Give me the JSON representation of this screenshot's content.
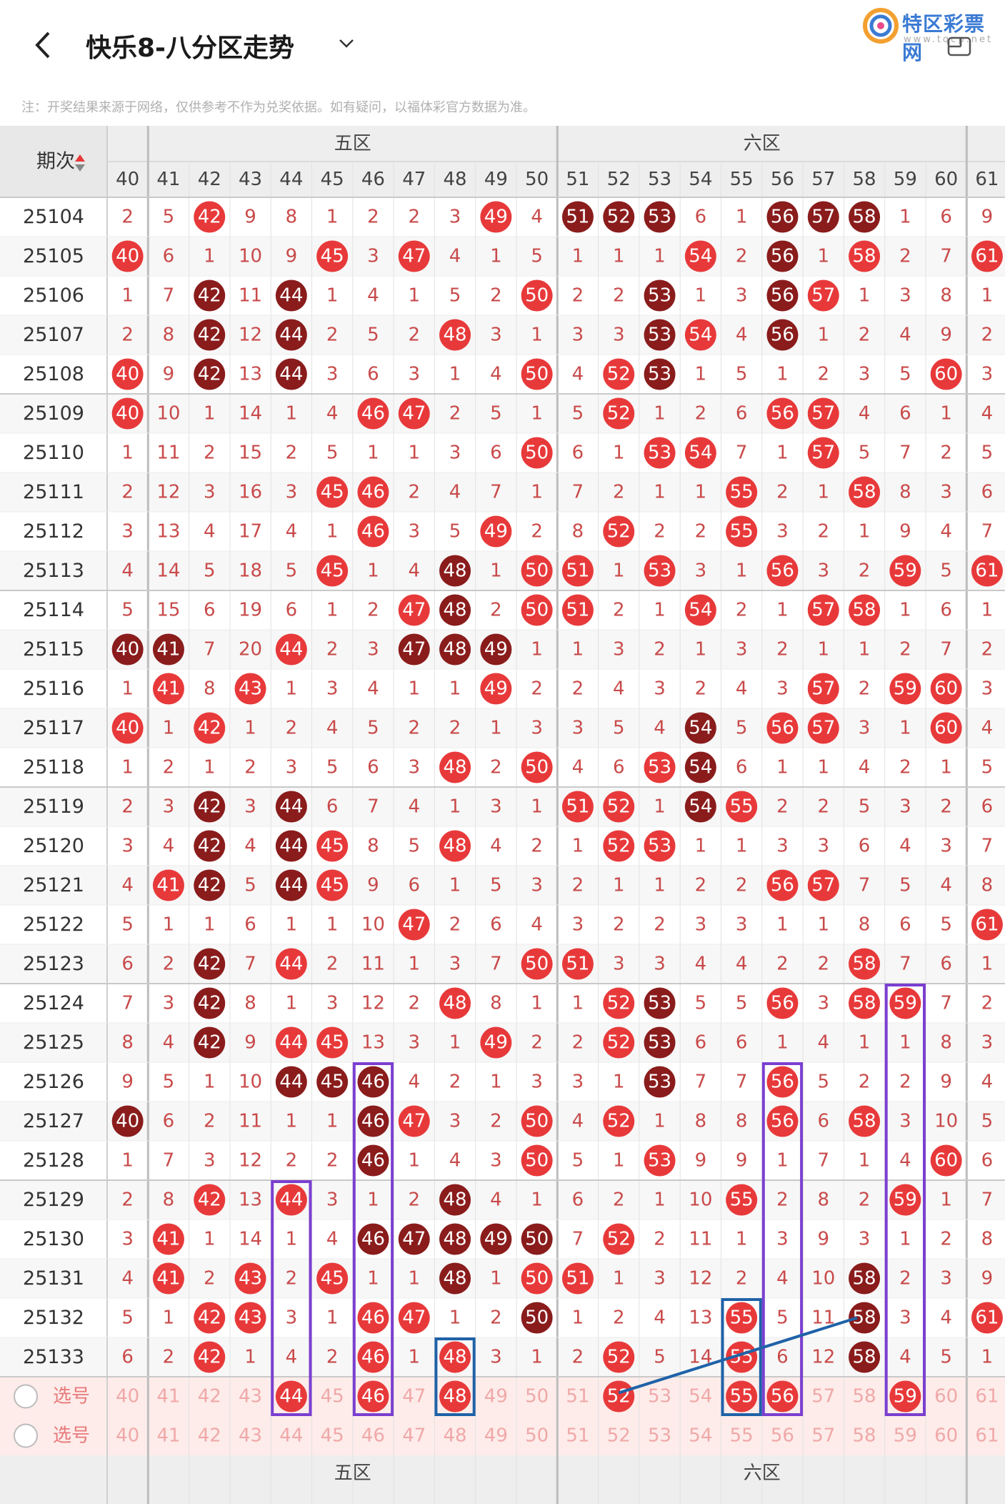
{
  "header": {
    "title": "快乐8-八分区走势",
    "logo_text": "特区彩票网",
    "logo_sub": "www.tqcp.net"
  },
  "notice": "注：开奖结果来源于网络，仅供参考不作为兑奖依据。如有疑问，以福体彩官方数据为准。",
  "table": {
    "period_header": "期次",
    "zone5_label": "五区",
    "zone6_label": "六区",
    "columns": [
      40,
      41,
      42,
      43,
      44,
      45,
      46,
      47,
      48,
      49,
      50,
      51,
      52,
      53,
      54,
      55,
      56,
      57,
      58,
      59,
      60,
      61
    ],
    "select_label": "选号",
    "rows": [
      {
        "p": "25104",
        "v": [
          2,
          5,
          42,
          9,
          8,
          1,
          2,
          2,
          3,
          49,
          4,
          51,
          52,
          53,
          6,
          1,
          56,
          57,
          58,
          1,
          6,
          9
        ]
      },
      {
        "p": "25105",
        "v": [
          40,
          6,
          1,
          10,
          9,
          45,
          3,
          47,
          4,
          1,
          5,
          1,
          1,
          1,
          54,
          2,
          56,
          1,
          58,
          2,
          7,
          61
        ]
      },
      {
        "p": "25106",
        "v": [
          1,
          7,
          42,
          11,
          44,
          1,
          4,
          1,
          5,
          2,
          50,
          2,
          2,
          53,
          1,
          3,
          56,
          57,
          1,
          3,
          8,
          1
        ]
      },
      {
        "p": "25107",
        "v": [
          2,
          8,
          42,
          12,
          44,
          2,
          5,
          2,
          48,
          3,
          1,
          3,
          3,
          53,
          54,
          4,
          56,
          1,
          2,
          4,
          9,
          2
        ]
      },
      {
        "p": "25108",
        "v": [
          40,
          9,
          42,
          13,
          44,
          3,
          6,
          3,
          1,
          4,
          50,
          4,
          52,
          53,
          1,
          5,
          1,
          2,
          3,
          5,
          60,
          3
        ]
      },
      {
        "p": "25109",
        "v": [
          40,
          10,
          1,
          14,
          1,
          4,
          46,
          47,
          2,
          5,
          1,
          5,
          52,
          1,
          2,
          6,
          56,
          57,
          4,
          6,
          1,
          4
        ]
      },
      {
        "p": "25110",
        "v": [
          1,
          11,
          2,
          15,
          2,
          5,
          1,
          1,
          3,
          6,
          50,
          6,
          1,
          53,
          54,
          7,
          1,
          57,
          5,
          7,
          2,
          5
        ]
      },
      {
        "p": "25111",
        "v": [
          2,
          12,
          3,
          16,
          3,
          45,
          46,
          2,
          4,
          7,
          1,
          7,
          2,
          1,
          1,
          55,
          2,
          1,
          58,
          8,
          3,
          6
        ]
      },
      {
        "p": "25112",
        "v": [
          3,
          13,
          4,
          17,
          4,
          1,
          46,
          3,
          5,
          49,
          2,
          8,
          52,
          2,
          2,
          55,
          3,
          2,
          1,
          9,
          4,
          7
        ]
      },
      {
        "p": "25113",
        "v": [
          4,
          14,
          5,
          18,
          5,
          45,
          1,
          4,
          48,
          1,
          50,
          51,
          1,
          53,
          3,
          1,
          56,
          3,
          2,
          59,
          5,
          61
        ]
      },
      {
        "p": "25114",
        "v": [
          5,
          15,
          6,
          19,
          6,
          1,
          2,
          47,
          48,
          2,
          50,
          51,
          2,
          1,
          54,
          2,
          1,
          57,
          58,
          1,
          6,
          1
        ]
      },
      {
        "p": "25115",
        "v": [
          40,
          41,
          7,
          20,
          44,
          2,
          3,
          47,
          48,
          49,
          1,
          1,
          3,
          2,
          1,
          3,
          2,
          1,
          1,
          2,
          7,
          2
        ]
      },
      {
        "p": "25116",
        "v": [
          1,
          41,
          8,
          43,
          1,
          3,
          4,
          1,
          1,
          49,
          2,
          2,
          4,
          3,
          2,
          4,
          3,
          57,
          2,
          59,
          60,
          3
        ]
      },
      {
        "p": "25117",
        "v": [
          40,
          1,
          42,
          1,
          2,
          4,
          5,
          2,
          2,
          1,
          3,
          3,
          5,
          4,
          54,
          5,
          56,
          57,
          3,
          1,
          60,
          4
        ]
      },
      {
        "p": "25118",
        "v": [
          1,
          2,
          1,
          2,
          3,
          5,
          6,
          3,
          48,
          2,
          50,
          4,
          6,
          53,
          54,
          6,
          1,
          1,
          4,
          2,
          1,
          5
        ]
      },
      {
        "p": "25119",
        "v": [
          2,
          3,
          42,
          3,
          44,
          6,
          7,
          4,
          1,
          3,
          1,
          51,
          52,
          1,
          54,
          55,
          2,
          2,
          5,
          3,
          2,
          6
        ]
      },
      {
        "p": "25120",
        "v": [
          3,
          4,
          42,
          4,
          44,
          45,
          8,
          5,
          48,
          4,
          2,
          1,
          52,
          53,
          1,
          1,
          3,
          3,
          6,
          4,
          3,
          7
        ]
      },
      {
        "p": "25121",
        "v": [
          4,
          41,
          42,
          5,
          44,
          45,
          9,
          6,
          1,
          5,
          3,
          2,
          1,
          1,
          2,
          2,
          56,
          57,
          7,
          5,
          4,
          8
        ]
      },
      {
        "p": "25122",
        "v": [
          5,
          1,
          1,
          6,
          1,
          1,
          10,
          47,
          2,
          6,
          4,
          3,
          2,
          2,
          3,
          3,
          1,
          1,
          8,
          6,
          5,
          61
        ]
      },
      {
        "p": "25123",
        "v": [
          6,
          2,
          42,
          7,
          44,
          2,
          11,
          1,
          3,
          7,
          50,
          51,
          3,
          3,
          4,
          4,
          2,
          2,
          58,
          7,
          6,
          1
        ]
      },
      {
        "p": "25124",
        "v": [
          7,
          3,
          42,
          8,
          1,
          3,
          12,
          2,
          48,
          8,
          1,
          1,
          52,
          53,
          5,
          5,
          56,
          3,
          58,
          59,
          7,
          2
        ]
      },
      {
        "p": "25125",
        "v": [
          8,
          4,
          42,
          9,
          44,
          45,
          13,
          3,
          1,
          49,
          2,
          2,
          52,
          53,
          6,
          6,
          1,
          4,
          1,
          1,
          8,
          3
        ]
      },
      {
        "p": "25126",
        "v": [
          9,
          5,
          1,
          10,
          44,
          45,
          46,
          4,
          2,
          1,
          3,
          3,
          1,
          53,
          7,
          7,
          56,
          5,
          2,
          2,
          9,
          4
        ]
      },
      {
        "p": "25127",
        "v": [
          40,
          6,
          2,
          11,
          1,
          1,
          46,
          47,
          3,
          2,
          50,
          4,
          52,
          1,
          8,
          8,
          56,
          6,
          58,
          3,
          10,
          5
        ]
      },
      {
        "p": "25128",
        "v": [
          1,
          7,
          3,
          12,
          2,
          2,
          46,
          1,
          4,
          3,
          50,
          5,
          1,
          53,
          9,
          9,
          1,
          7,
          1,
          4,
          60,
          6
        ]
      },
      {
        "p": "25129",
        "v": [
          2,
          8,
          42,
          13,
          44,
          3,
          1,
          2,
          48,
          4,
          1,
          6,
          2,
          1,
          10,
          55,
          2,
          8,
          2,
          59,
          1,
          7
        ]
      },
      {
        "p": "25130",
        "v": [
          3,
          41,
          1,
          14,
          1,
          4,
          46,
          47,
          48,
          49,
          50,
          7,
          52,
          2,
          11,
          1,
          3,
          9,
          3,
          1,
          2,
          8
        ]
      },
      {
        "p": "25131",
        "v": [
          4,
          41,
          2,
          43,
          2,
          45,
          1,
          1,
          48,
          1,
          50,
          51,
          1,
          3,
          12,
          2,
          4,
          10,
          58,
          2,
          3,
          9
        ]
      },
      {
        "p": "25132",
        "v": [
          5,
          1,
          42,
          43,
          3,
          1,
          46,
          47,
          1,
          2,
          50,
          1,
          2,
          4,
          13,
          55,
          5,
          11,
          58,
          3,
          4,
          61
        ]
      },
      {
        "p": "25133",
        "v": [
          6,
          2,
          42,
          1,
          4,
          2,
          46,
          1,
          48,
          3,
          1,
          2,
          52,
          5,
          14,
          55,
          6,
          12,
          58,
          4,
          5,
          1
        ]
      }
    ],
    "dark_cells": [
      "25104-53",
      "25104-52",
      "25104-51",
      "25104-56",
      "25104-57",
      "25104-58",
      "25105-56",
      "25106-42",
      "25106-44",
      "25106-53",
      "25106-56",
      "25107-42",
      "25107-44",
      "25107-53",
      "25107-56",
      "25108-42",
      "25108-44",
      "25108-53",
      "25113-48",
      "25114-48",
      "25115-40",
      "25115-41",
      "25115-47",
      "25115-48",
      "25115-49",
      "25117-54",
      "25118-54",
      "25119-42",
      "25119-44",
      "25119-54",
      "25120-42",
      "25120-44",
      "25121-42",
      "25121-44",
      "25123-42",
      "25124-42",
      "25124-53",
      "25125-42",
      "25125-53",
      "25126-44",
      "25126-45",
      "25126-46",
      "25126-53",
      "25127-40",
      "25127-46",
      "25128-46",
      "25129-48",
      "25130-46",
      "25130-47",
      "25130-48",
      "25130-49",
      "25130-50",
      "25131-48",
      "25131-58",
      "25132-50",
      "25132-58",
      "25133-58"
    ],
    "select_row1": [
      0,
      0,
      0,
      0,
      1,
      0,
      1,
      0,
      1,
      0,
      0,
      0,
      1,
      0,
      0,
      1,
      1,
      0,
      0,
      1,
      0,
      0
    ],
    "colors": {
      "red_ball": "#e8393a",
      "dark_ball": "#8a1c1c",
      "miss_text": "#c94a4a",
      "purple_box": "#7b3fd0",
      "blue_box": "#1f62a8"
    }
  }
}
